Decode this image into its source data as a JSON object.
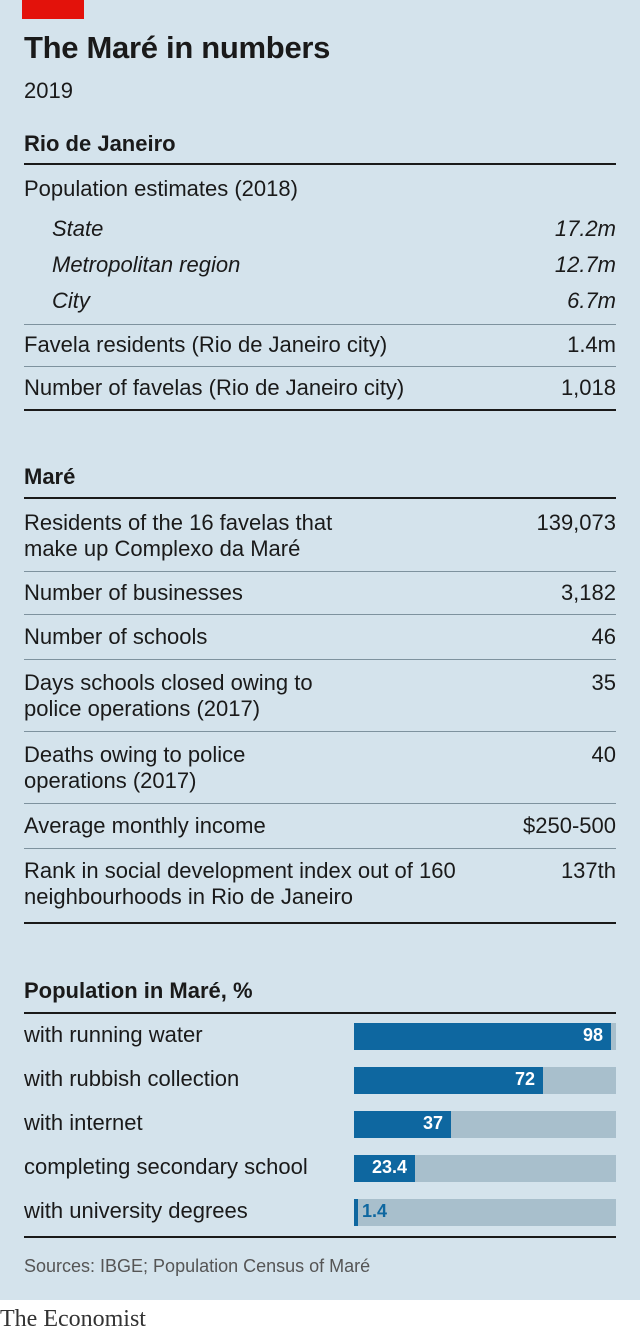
{
  "title": "The Maré in numbers",
  "subtitle": "2019",
  "rio": {
    "heading": "Rio de Janeiro",
    "pop_heading": "Population estimates (2018)",
    "pop_rows": [
      {
        "label": "State",
        "value": "17.2m"
      },
      {
        "label": "Metropolitan region",
        "value": "12.7m"
      },
      {
        "label": "City",
        "value": "6.7m"
      }
    ],
    "rows": [
      {
        "label": "Favela residents (Rio de Janeiro city)",
        "value": "1.4m"
      },
      {
        "label": "Number of favelas (Rio de Janeiro city)",
        "value": "1,018"
      }
    ]
  },
  "mare": {
    "heading": "Maré",
    "rows": [
      {
        "label": "Residents of the 16 favelas that make up Complexo da Maré",
        "value": "139,073"
      },
      {
        "label": "Number of businesses",
        "value": "3,182"
      },
      {
        "label": "Number of schools",
        "value": "46"
      },
      {
        "label": "Days schools closed owing to police operations (2017)",
        "value": "35"
      },
      {
        "label": "Deaths owing to police operations (2017)",
        "value": "40"
      },
      {
        "label": "Average monthly income",
        "value": "$250-500"
      },
      {
        "label": "Rank in social development index out of 160 neighbourhoods in Rio de Janeiro",
        "value": "137th"
      }
    ]
  },
  "chart_data": {
    "type": "bar",
    "title": "Population in Maré, %",
    "categories": [
      "with running water",
      "with rubbish collection",
      "with internet",
      "completing secondary school",
      "with university degrees"
    ],
    "values": [
      98,
      72,
      37,
      23.4,
      1.4
    ],
    "value_labels": [
      "98",
      "72",
      "37",
      "23.4",
      "1.4"
    ],
    "ylim": [
      0,
      100
    ],
    "orientation": "horizontal",
    "grid": false,
    "colors": {
      "bar": "#0e67a0",
      "track": "#a8bfcc"
    }
  },
  "source": "Sources: IBGE; Population Census of Maré",
  "brand": "The Economist",
  "colors": {
    "background": "#d4e3ec",
    "accent": "#e3120b"
  }
}
